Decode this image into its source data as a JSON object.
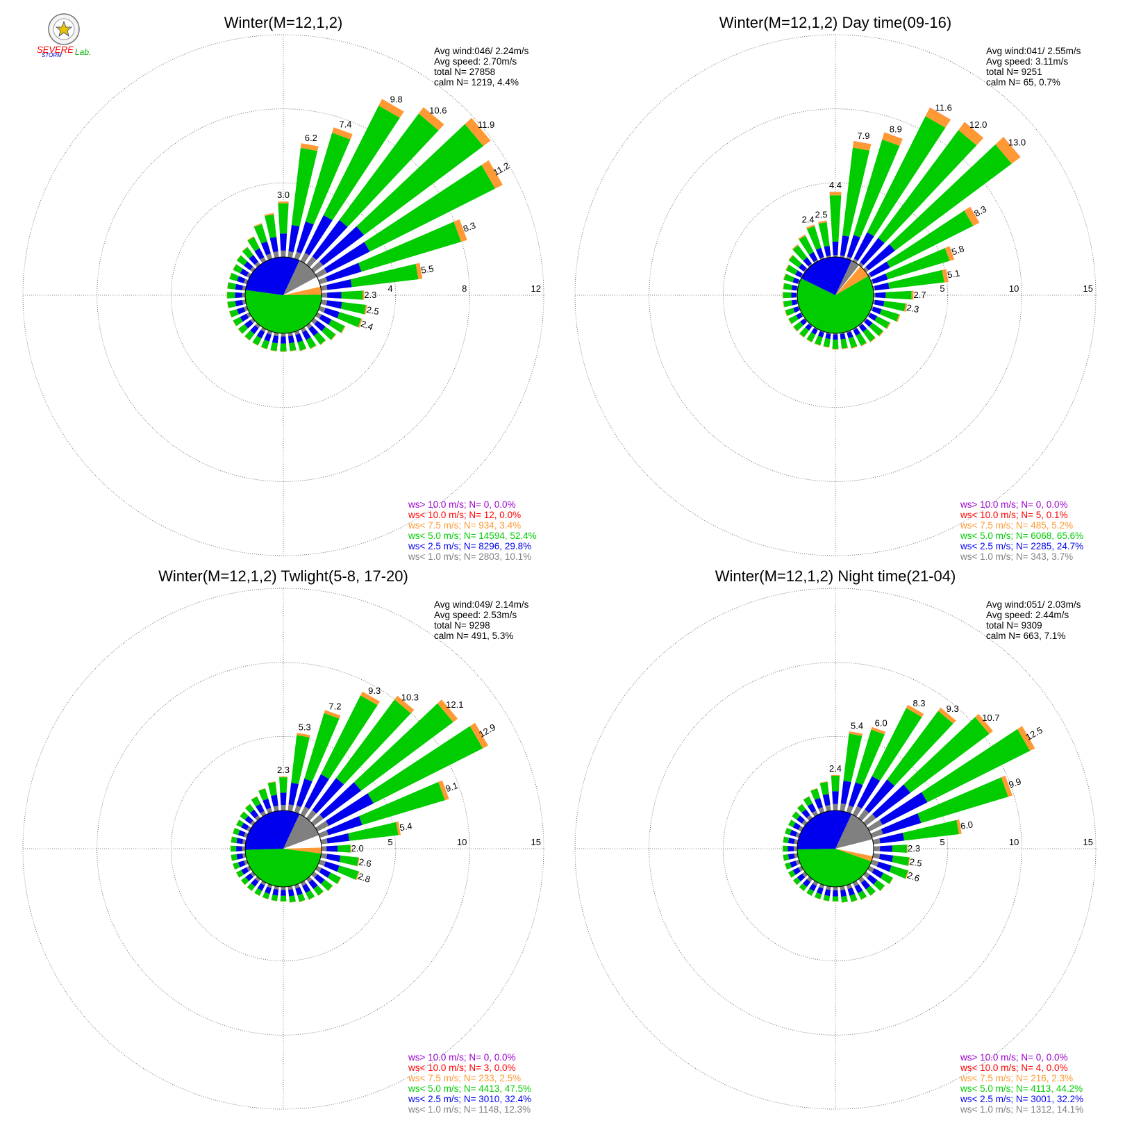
{
  "logo": {
    "name": "Severe Storm Lab.",
    "text_severe": "SEVERE",
    "text_storm": "STORM",
    "text_lab": "Lab."
  },
  "colors": {
    "gray": "#808080",
    "blue": "#0000ee",
    "green": "#00cc00",
    "orange": "#ff9933",
    "red": "#ff0000",
    "purple": "#9900cc",
    "calm": "#ffffff"
  },
  "chart_data": [
    {
      "type": "wind-rose",
      "title": "Winter(M=12,1,2)",
      "stats": [
        "Avg wind:046/ 2.24m/s",
        "Avg speed: 2.70m/s",
        "total N=       27858",
        "calm N=   1219,   4.4%"
      ],
      "rings": [
        4,
        8,
        12
      ],
      "rmax": 12,
      "directions_deg": [
        0,
        10,
        20,
        30,
        40,
        50,
        60,
        70,
        80,
        90,
        100,
        110,
        120,
        130,
        140,
        150,
        160,
        170,
        180,
        190,
        200,
        210,
        220,
        230,
        240,
        250,
        260,
        270,
        280,
        290,
        300,
        310,
        320,
        330,
        340,
        350
      ],
      "totals": [
        3.0,
        6.2,
        7.4,
        9.8,
        10.6,
        11.9,
        11.2,
        8.3,
        5.5,
        2.3,
        2.5,
        2.4,
        1.7,
        1.5,
        1.3,
        1.2,
        1.1,
        1.0,
        1.0,
        1.0,
        1.0,
        1.0,
        1.0,
        1.0,
        1.0,
        1.0,
        1.0,
        1.0,
        1.0,
        1.0,
        1.0,
        1.1,
        1.2,
        1.5,
        2.0,
        2.4
      ],
      "labels": {
        "0": "3.0",
        "10": "6.2",
        "20": "7.4",
        "30": "9.8",
        "40": "10.6",
        "50": "11.9",
        "60": "11.2",
        "70": "8.3",
        "80": "5.5",
        "90": "2.3",
        "100": "2.5",
        "110": "2.4"
      },
      "speed_classes": [
        {
          "label": "ws> 10.0 m/s; N=     0,  0.0%",
          "color": "#9900cc",
          "share": 0.0
        },
        {
          "label": "ws< 10.0 m/s; N=    12,  0.0%",
          "color": "#ff0000",
          "share": 0.0
        },
        {
          "label": "ws<  7.5 m/s; N=   934,  3.4%",
          "color": "#ff9933",
          "share": 3.4
        },
        {
          "label": "ws<  5.0 m/s; N= 14594, 52.4%",
          "color": "#00cc00",
          "share": 52.4
        },
        {
          "label": "ws<  2.5 m/s; N=  8296, 29.8%",
          "color": "#0000ee",
          "share": 29.8
        },
        {
          "label": "ws<  1.0 m/s; N=  2803, 10.1%",
          "color": "#808080",
          "share": 10.1
        }
      ]
    },
    {
      "type": "wind-rose",
      "title": "Winter(M=12,1,2) Day time(09-16)",
      "stats": [
        "Avg wind:041/ 2.55m/s",
        "Avg speed: 3.11m/s",
        "total N=        9251",
        "calm N=     65,   0.7%"
      ],
      "rings": [
        5,
        10,
        15
      ],
      "rmax": 15,
      "directions_deg": [
        0,
        10,
        20,
        30,
        40,
        50,
        60,
        70,
        80,
        90,
        100,
        110,
        120,
        130,
        140,
        150,
        160,
        170,
        180,
        190,
        200,
        210,
        220,
        230,
        240,
        250,
        260,
        270,
        280,
        290,
        300,
        310,
        320,
        330,
        340,
        350
      ],
      "totals": [
        4.4,
        7.9,
        8.9,
        11.6,
        12.0,
        13.0,
        8.3,
        5.8,
        5.1,
        2.7,
        2.3,
        2.0,
        1.6,
        1.5,
        1.4,
        1.3,
        1.2,
        1.1,
        1.1,
        1.0,
        1.0,
        1.0,
        1.0,
        1.0,
        1.0,
        1.0,
        1.0,
        1.0,
        1.0,
        1.1,
        1.2,
        1.4,
        1.7,
        2.0,
        2.4,
        2.5
      ],
      "labels": {
        "0": "4.4",
        "10": "7.9",
        "20": "8.9",
        "30": "11.6",
        "40": "12.0",
        "50": "13.0",
        "60": "8.3",
        "70": "5.8",
        "80": "5.1",
        "90": "2.7",
        "100": "2.3",
        "340": "2.4",
        "350": "2.5"
      },
      "speed_classes": [
        {
          "label": "ws> 10.0 m/s; N=     0,  0.0%",
          "color": "#9900cc",
          "share": 0.0
        },
        {
          "label": "ws< 10.0 m/s; N=     5,  0.1%",
          "color": "#ff0000",
          "share": 0.1
        },
        {
          "label": "ws<  7.5 m/s; N=   485,  5.2%",
          "color": "#ff9933",
          "share": 5.2
        },
        {
          "label": "ws<  5.0 m/s; N=  6068, 65.6%",
          "color": "#00cc00",
          "share": 65.6
        },
        {
          "label": "ws<  2.5 m/s; N=  2285, 24.7%",
          "color": "#0000ee",
          "share": 24.7
        },
        {
          "label": "ws<  1.0 m/s; N=   343,  3.7%",
          "color": "#808080",
          "share": 3.7
        }
      ]
    },
    {
      "type": "wind-rose",
      "title": "Winter(M=12,1,2) Twlight(5-8, 17-20)",
      "stats": [
        "Avg wind:049/ 2.14m/s",
        "Avg speed: 2.53m/s",
        "total N=        9298",
        "calm N=    491,   5.3%"
      ],
      "rings": [
        5,
        10,
        15
      ],
      "rmax": 15,
      "directions_deg": [
        0,
        10,
        20,
        30,
        40,
        50,
        60,
        70,
        80,
        90,
        100,
        110,
        120,
        130,
        140,
        150,
        160,
        170,
        180,
        190,
        200,
        210,
        220,
        230,
        240,
        250,
        260,
        270,
        280,
        290,
        300,
        310,
        320,
        330,
        340,
        350
      ],
      "totals": [
        2.3,
        5.3,
        7.2,
        9.3,
        10.3,
        12.1,
        12.9,
        9.1,
        5.4,
        2.0,
        2.6,
        2.8,
        1.8,
        1.6,
        1.4,
        1.3,
        1.2,
        1.1,
        1.0,
        1.0,
        1.0,
        1.0,
        1.0,
        1.0,
        1.0,
        1.0,
        1.0,
        1.0,
        1.0,
        1.0,
        1.0,
        1.1,
        1.2,
        1.4,
        1.7,
        2.0
      ],
      "labels": {
        "0": "2.3",
        "10": "5.3",
        "20": "7.2",
        "30": "9.3",
        "40": "10.3",
        "50": "12.1",
        "60": "12.9",
        "70": "9.1",
        "80": "5.4",
        "90": "2.0",
        "100": "2.6",
        "110": "2.8"
      },
      "speed_classes": [
        {
          "label": "ws> 10.0 m/s; N=     0,  0.0%",
          "color": "#9900cc",
          "share": 0.0
        },
        {
          "label": "ws< 10.0 m/s; N=     3,  0.0%",
          "color": "#ff0000",
          "share": 0.0
        },
        {
          "label": "ws<  7.5 m/s; N=   233,  2.5%",
          "color": "#ff9933",
          "share": 2.5
        },
        {
          "label": "ws<  5.0 m/s; N=  4413, 47.5%",
          "color": "#00cc00",
          "share": 47.5
        },
        {
          "label": "ws<  2.5 m/s; N=  3010, 32.4%",
          "color": "#0000ee",
          "share": 32.4
        },
        {
          "label": "ws<  1.0 m/s; N=  1148, 12.3%",
          "color": "#808080",
          "share": 12.3
        }
      ]
    },
    {
      "type": "wind-rose",
      "title": "Winter(M=12,1,2) Night time(21-04)",
      "stats": [
        "Avg wind:051/ 2.03m/s",
        "Avg speed: 2.44m/s",
        "total N=        9309",
        "calm N=    663,   7.1%"
      ],
      "rings": [
        5,
        10,
        15
      ],
      "rmax": 15,
      "directions_deg": [
        0,
        10,
        20,
        30,
        40,
        50,
        60,
        70,
        80,
        90,
        100,
        110,
        120,
        130,
        140,
        150,
        160,
        170,
        180,
        190,
        200,
        210,
        220,
        230,
        240,
        250,
        260,
        270,
        280,
        290,
        300,
        310,
        320,
        330,
        340,
        350
      ],
      "totals": [
        2.4,
        5.4,
        6.0,
        8.3,
        9.3,
        10.7,
        12.5,
        9.9,
        6.0,
        2.3,
        2.5,
        2.6,
        1.8,
        1.6,
        1.4,
        1.3,
        1.2,
        1.1,
        1.0,
        1.0,
        1.0,
        1.0,
        1.0,
        1.0,
        1.0,
        1.0,
        1.0,
        1.0,
        1.0,
        1.0,
        1.0,
        1.1,
        1.2,
        1.4,
        1.7,
        2.0
      ],
      "labels": {
        "0": "2.4",
        "10": "5.4",
        "20": "6.0",
        "30": "8.3",
        "40": "9.3",
        "50": "10.7",
        "60": "12.5",
        "70": "9.9",
        "80": "6.0",
        "90": "2.3",
        "100": "2.5",
        "110": "2.6"
      },
      "speed_classes": [
        {
          "label": "ws> 10.0 m/s; N=     0,  0.0%",
          "color": "#9900cc",
          "share": 0.0
        },
        {
          "label": "ws< 10.0 m/s; N=     4,  0.0%",
          "color": "#ff0000",
          "share": 0.0
        },
        {
          "label": "ws<  7.5 m/s; N=   216,  2.3%",
          "color": "#ff9933",
          "share": 2.3
        },
        {
          "label": "ws<  5.0 m/s; N=  4113, 44.2%",
          "color": "#00cc00",
          "share": 44.2
        },
        {
          "label": "ws<  2.5 m/s; N=  3001, 32.2%",
          "color": "#0000ee",
          "share": 32.2
        },
        {
          "label": "ws<  1.0 m/s; N=  1312, 14.1%",
          "color": "#808080",
          "share": 14.1
        }
      ]
    }
  ]
}
